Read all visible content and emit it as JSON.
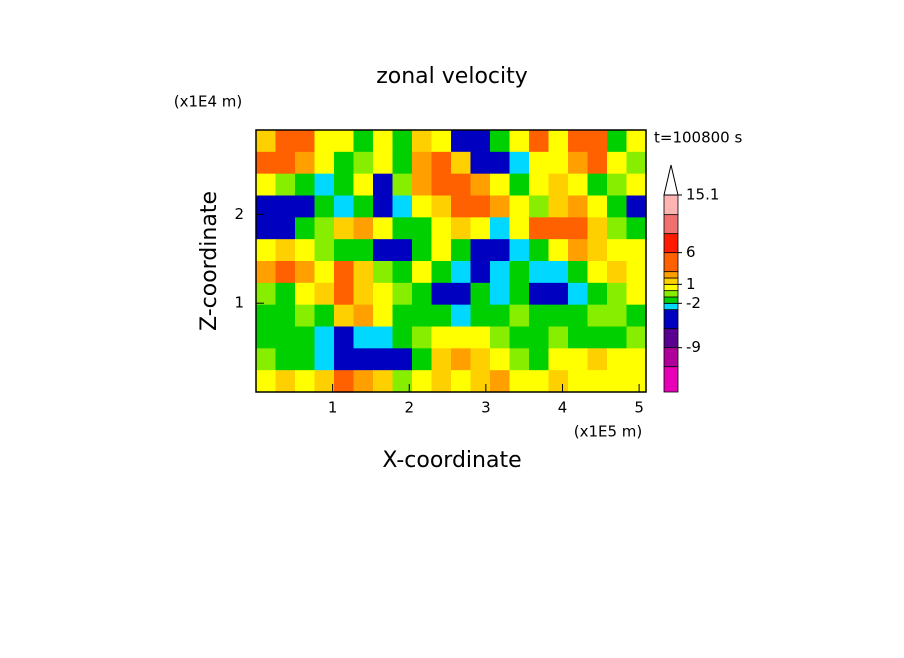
{
  "chart_data": {
    "type": "contour",
    "title": "zonal velocity",
    "annotation": "t=100800 s",
    "x_label": "X-coordinate",
    "y_label": "Z-coordinate",
    "x_unit": "(x1E5 m)",
    "y_unit": "(x1E4 m)",
    "xlim": [
      0,
      5.09
    ],
    "ylim": [
      0,
      2.95
    ],
    "xticks": [
      1,
      2,
      3,
      4,
      5
    ],
    "yticks": [
      1,
      2
    ],
    "z": [
      [
        1.5,
        4,
        4,
        0.5,
        0.5,
        -1.5,
        0.5,
        -1.5,
        1.5,
        0.5,
        -4,
        -6,
        -1.5,
        0.5,
        4,
        0.5,
        4,
        4,
        -1.5,
        0.5
      ],
      [
        4,
        4,
        2,
        0.5,
        -1.5,
        -0.5,
        0.5,
        -1.5,
        2.5,
        4,
        1.5,
        -4,
        -4,
        -3,
        0.5,
        0.5,
        2.5,
        4,
        0.5,
        -0.5
      ],
      [
        0.5,
        -0.5,
        -1.5,
        -2.5,
        -1.5,
        0.5,
        -4,
        -0.5,
        2.5,
        4,
        4,
        2,
        0.5,
        -1.5,
        0.5,
        1.5,
        0.5,
        -1.5,
        -0.5,
        0.5
      ],
      [
        -4,
        -6,
        -4,
        -1.5,
        -2.5,
        -1.5,
        -4,
        -2.5,
        0.5,
        1.5,
        4,
        4,
        2,
        0.5,
        -0.5,
        1.5,
        2.5,
        0.5,
        -1.5,
        -4
      ],
      [
        -4,
        -4,
        -1.5,
        -0.5,
        1.5,
        2.5,
        0.5,
        -1.5,
        -1.5,
        0.5,
        1.5,
        0.5,
        -2.5,
        0.5,
        4,
        4,
        4,
        1.5,
        -0.5,
        -1.5
      ],
      [
        0.5,
        1.5,
        0.5,
        -0.5,
        -1.5,
        -1.5,
        -4,
        -4,
        -1.5,
        0.5,
        -1.5,
        -4,
        -4,
        -2.5,
        -1.5,
        0.5,
        2.5,
        1.5,
        0.5,
        0.5
      ],
      [
        2.5,
        4,
        2.5,
        0.5,
        4,
        1.5,
        -0.5,
        -1.5,
        0.5,
        -1.5,
        -2.5,
        -4,
        -2.5,
        -1.5,
        -2.5,
        -2.5,
        -1.5,
        0.5,
        1.5,
        0.5
      ],
      [
        -0.5,
        -1.5,
        0.5,
        1.5,
        4,
        1.5,
        0.5,
        -0.5,
        -1.5,
        -4,
        -4,
        -1.5,
        -2.5,
        -1.5,
        -4,
        -4,
        -2.5,
        -1.5,
        -0.5,
        0.5
      ],
      [
        -1.5,
        -1.5,
        -0.5,
        -1.5,
        1.5,
        2.5,
        0.5,
        -1.5,
        -1.5,
        -1.5,
        -2.5,
        -1.5,
        -1.5,
        -0.5,
        -1.5,
        -1.5,
        -1.5,
        -0.5,
        -0.5,
        -1.5
      ],
      [
        -1.5,
        -1.5,
        -1.5,
        -2.5,
        -4,
        -2.5,
        -2.5,
        -1.5,
        -0.5,
        0.5,
        0.5,
        0.5,
        -0.5,
        -1.5,
        -1.5,
        -0.5,
        -1.5,
        -1.5,
        -1.5,
        -0.5
      ],
      [
        -0.5,
        -1.5,
        -1.5,
        -2.5,
        -6,
        -4,
        -4,
        -4,
        -1.5,
        1.5,
        2.5,
        1.5,
        0.5,
        -0.5,
        -1.5,
        0.5,
        0.5,
        1.5,
        0.5,
        0.5
      ],
      [
        0.5,
        1.5,
        0.5,
        1.5,
        4,
        2.5,
        1.5,
        -0.5,
        0.5,
        1.5,
        0.5,
        1.5,
        2.5,
        0.5,
        0.5,
        1.5,
        0.5,
        0.5,
        0.5,
        0.5
      ]
    ],
    "colorbar": {
      "levels": [
        -16,
        -12,
        -9,
        -6,
        -3,
        -2,
        -1,
        0,
        1,
        2,
        3,
        6,
        9,
        12,
        15.1
      ],
      "colors": [
        "#e800b8",
        "#b0009a",
        "#5a0090",
        "#0000c0",
        "#00d8ff",
        "#00d000",
        "#88ee00",
        "#ffff00",
        "#ffd000",
        "#ffa000",
        "#ff6000",
        "#ff1a00",
        "#f07070",
        "#ffb4b4"
      ],
      "over_color": "#ffffff",
      "ticks": [
        15.1,
        6,
        1,
        -2,
        -9
      ]
    }
  }
}
